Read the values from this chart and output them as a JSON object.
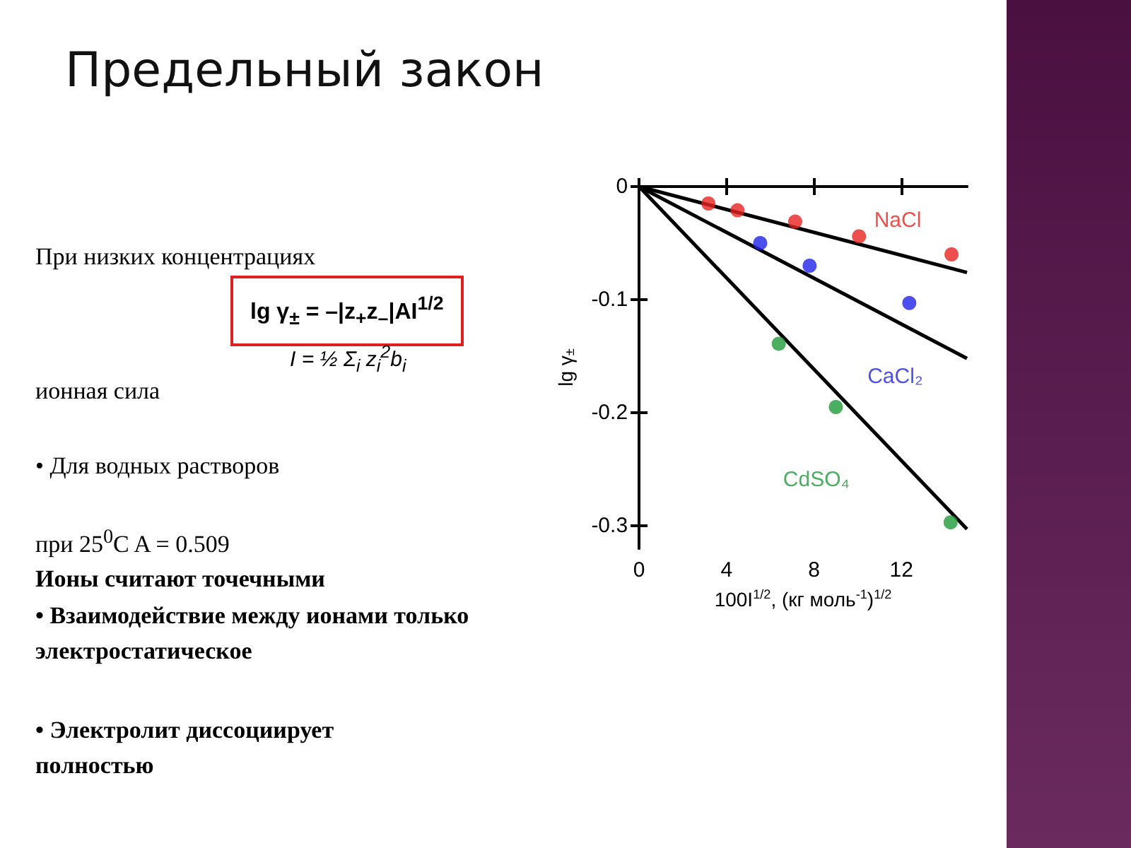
{
  "chart_data": {
    "type": "scatter",
    "title": "Предельный закон",
    "xlabel": "100I$^{1/2}$, (кг моль$^{-1}$)$^{1/2}$",
    "ylabel": "lg γ$_{±}$",
    "xlim": [
      0,
      15
    ],
    "ylim": [
      -0.32,
      0
    ],
    "xticks": [
      0,
      4,
      8,
      12
    ],
    "yticks": [
      0,
      -0.1,
      -0.2,
      -0.3
    ],
    "grid": false,
    "legend": false,
    "marker": "circle",
    "series": [
      {
        "name": "NaCl",
        "color": "#e8241f",
        "x": [
          3.17,
          4.5,
          7.14,
          10.06,
          14.29
        ],
        "values": [
          -0.015,
          -0.021,
          -0.031,
          -0.044,
          -0.06
        ]
      },
      {
        "name": "CaCl₂",
        "color": "#1f23e8",
        "x": [
          5.54,
          7.8,
          12.36
        ],
        "values": [
          -0.05,
          -0.07,
          -0.103
        ]
      },
      {
        "name": "CdSO₄",
        "color": "#1e9a3a",
        "x": [
          6.39,
          9.0,
          14.25
        ],
        "values": [
          -0.139,
          -0.195,
          -0.297
        ]
      },
      {
        "type": "line",
        "marker": "none",
        "color": "#000000",
        "x": [
          0,
          15
        ],
        "values": [
          0,
          -0.076
        ]
      },
      {
        "type": "line",
        "marker": "none",
        "color": "#000000",
        "x": [
          0,
          15
        ],
        "values": [
          0,
          -0.152
        ]
      },
      {
        "type": "line",
        "marker": "none",
        "color": "#000000",
        "x": [
          0,
          15
        ],
        "values": [
          0,
          -0.303
        ]
      }
    ],
    "annotations": [
      "При низких концентрациях",
      "lg γ$_{±}$ = –|z$_{+}$z$_{–}$|AI$^{1/2}$",
      "I = ½ Σ$_{i}$ z$_{i}$$^{2}$b$_{i}$",
      "ионная сила",
      "• Для водных растворов",
      "при 25$^{0}$C A = 0.509",
      "Ионы считают точечными",
      "• Взаимодействие между ионами только электростатическое",
      "• Электролит диссоциирует полностью"
    ]
  }
}
